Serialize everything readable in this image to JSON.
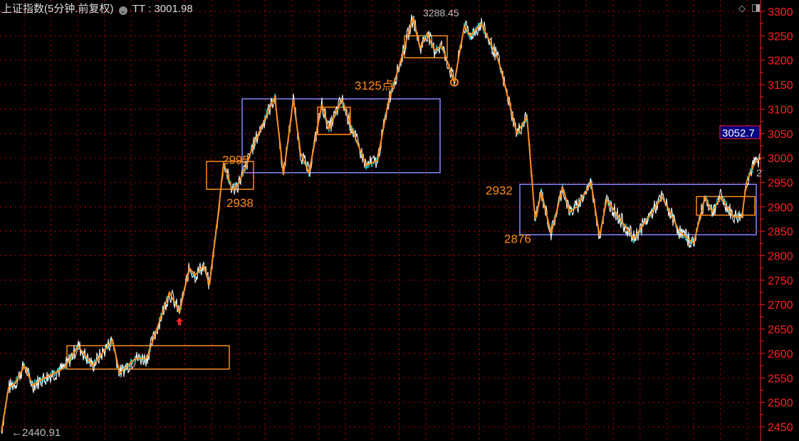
{
  "header": {
    "title": "上证指数(5分钟.前复权)",
    "indicator_label": "TT",
    "indicator_value": "3001.98",
    "diamond_icon": "diamond-icon",
    "panel_icon": "panel-toggle-icon"
  },
  "chart_data": {
    "type": "line",
    "ylim": [
      2450,
      3300
    ],
    "yticks": [
      3300,
      3250,
      3200,
      3150,
      3100,
      3050,
      3000,
      2950,
      2900,
      2850,
      2800,
      2750,
      2700,
      2650,
      2600,
      2550,
      2500,
      2450
    ],
    "tlim": [
      0,
      267
    ],
    "grid": true,
    "current_price": "3052.7",
    "low_label": "2440.91",
    "colors": {
      "price": "#ffffff",
      "avg": "#00e5e5",
      "zigzag": "#ff8c1a",
      "box_orange": "#ff8c1a",
      "box_blue": "#8888ff",
      "axis": "#ff2020",
      "grid": "#c00000",
      "price_tag_bg": "#000080"
    },
    "zigzag": [
      [
        0,
        2440
      ],
      [
        2.5,
        2530
      ],
      [
        5,
        2540
      ],
      [
        8,
        2575
      ],
      [
        11,
        2535
      ],
      [
        14.5,
        2548
      ],
      [
        22,
        2570
      ],
      [
        27,
        2615
      ],
      [
        32,
        2575
      ],
      [
        39,
        2628
      ],
      [
        41.5,
        2560
      ],
      [
        47,
        2590
      ],
      [
        51,
        2590
      ],
      [
        59,
        2725
      ],
      [
        62.5,
        2685
      ],
      [
        66,
        2775
      ],
      [
        68,
        2760
      ],
      [
        71,
        2780
      ],
      [
        73,
        2740
      ],
      [
        76,
        2880
      ],
      [
        78,
        2990
      ],
      [
        81,
        2935
      ],
      [
        83,
        2945
      ],
      [
        86,
        2985
      ],
      [
        88,
        3020
      ],
      [
        92.5,
        3080
      ],
      [
        96,
        3125
      ],
      [
        99,
        2965
      ],
      [
        102.5,
        3120
      ],
      [
        105,
        3010
      ],
      [
        108,
        2970
      ],
      [
        112.5,
        3110
      ],
      [
        115,
        3060
      ],
      [
        119.5,
        3120
      ],
      [
        123,
        3060
      ],
      [
        128,
        2985
      ],
      [
        132,
        2995
      ],
      [
        136,
        3120
      ],
      [
        139.5,
        3185
      ],
      [
        144.5,
        3288
      ],
      [
        147,
        3225
      ],
      [
        149.5,
        3255
      ],
      [
        152,
        3220
      ],
      [
        154.5,
        3230
      ],
      [
        157,
        3190
      ],
      [
        159,
        3155
      ],
      [
        162.5,
        3270
      ],
      [
        164.5,
        3250
      ],
      [
        168.5,
        3275
      ],
      [
        174.5,
        3200
      ],
      [
        181,
        3050
      ],
      [
        184.5,
        3085
      ],
      [
        187,
        2900
      ],
      [
        187.5,
        2875
      ],
      [
        189.5,
        2930
      ],
      [
        193,
        2845
      ],
      [
        197,
        2940
      ],
      [
        199.5,
        2890
      ],
      [
        202,
        2900
      ],
      [
        207,
        2950
      ],
      [
        210,
        2840
      ],
      [
        212.5,
        2915
      ],
      [
        222,
        2835
      ],
      [
        232,
        2920
      ],
      [
        238,
        2850
      ],
      [
        243,
        2825
      ],
      [
        247,
        2920
      ],
      [
        249.5,
        2890
      ],
      [
        252.5,
        2920
      ],
      [
        257,
        2880
      ],
      [
        260,
        2880
      ],
      [
        261.5,
        2950
      ],
      [
        264.5,
        2990
      ],
      [
        266.5,
        3000
      ]
    ],
    "boxes": [
      {
        "color": "orange",
        "t": [
          23,
          80
        ],
        "v": [
          2568,
          2616
        ]
      },
      {
        "color": "blue",
        "t": [
          84.5,
          154
        ],
        "v": [
          2970,
          3121
        ]
      },
      {
        "color": "orange",
        "t": [
          72,
          88.5
        ],
        "v": [
          2936,
          2993
        ]
      },
      {
        "color": "orange",
        "t": [
          111,
          122.5
        ],
        "v": [
          3048,
          3104
        ]
      },
      {
        "color": "orange",
        "t": [
          141.5,
          156.5
        ],
        "v": [
          3205,
          3250
        ]
      },
      {
        "color": "blue",
        "t": [
          182,
          265
        ],
        "v": [
          2843,
          2946
        ]
      },
      {
        "color": "orange",
        "t": [
          244,
          264.5
        ],
        "v": [
          2883,
          2921
        ]
      }
    ],
    "annotations": [
      {
        "text": "2995",
        "t": 77.5,
        "v": 2988,
        "color": "orange"
      },
      {
        "text": "2938",
        "t": 79,
        "v": 2900,
        "color": "orange"
      },
      {
        "text": "3125点",
        "t": 124,
        "v": 3140,
        "color": "orange"
      },
      {
        "text": "3288.45",
        "t": 148,
        "v": 3290,
        "color": "gray"
      },
      {
        "text": "2932",
        "t": 170,
        "v": 2925,
        "color": "orange"
      },
      {
        "text": "2876",
        "t": 176.5,
        "v": 2826,
        "color": "orange"
      },
      {
        "text": "2",
        "t": 265,
        "v": 2962,
        "color": "gray"
      }
    ],
    "markers": [
      {
        "type": "up-arrow",
        "t": 62.5,
        "v": 2665,
        "color": "#ff2020"
      },
      {
        "type": "circle",
        "t": 159,
        "v": 3155,
        "color": "#ff8c1a"
      }
    ]
  }
}
